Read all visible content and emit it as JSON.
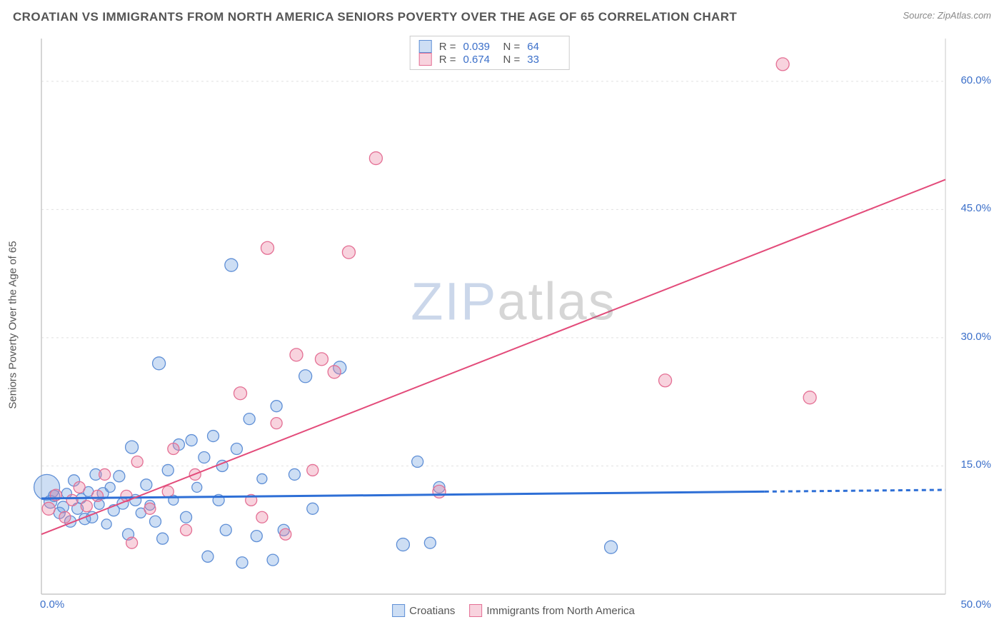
{
  "header": {
    "title": "CROATIAN VS IMMIGRANTS FROM NORTH AMERICA SENIORS POVERTY OVER THE AGE OF 65 CORRELATION CHART",
    "source": "Source: ZipAtlas.com"
  },
  "watermark": {
    "part1": "ZIP",
    "part2": "atlas"
  },
  "chart": {
    "type": "scatter",
    "y_axis_label": "Seniors Poverty Over the Age of 65",
    "background_color": "#ffffff",
    "grid_color": "#e0e0e0",
    "axis_line_color": "#c9c9c9",
    "tick_label_color": "#3b6fc9",
    "x_range": [
      0,
      50
    ],
    "y_range": [
      0,
      65
    ],
    "x_ticks": [
      {
        "v": 0,
        "label": "0.0%"
      },
      {
        "v": 50,
        "label": "50.0%"
      }
    ],
    "y_ticks": [
      {
        "v": 15,
        "label": "15.0%"
      },
      {
        "v": 30,
        "label": "30.0%"
      },
      {
        "v": 45,
        "label": "45.0%"
      },
      {
        "v": 60,
        "label": "60.0%"
      }
    ],
    "series": [
      {
        "id": "croatians",
        "label": "Croatians",
        "fill": "rgba(113,160,224,0.35)",
        "stroke": "#5f8fd6",
        "r_value": "0.039",
        "n_value": "64",
        "trend": {
          "color": "#2e6fd6",
          "width": 3,
          "y_start": 11.2,
          "y_end": 12.2,
          "dash_after_x": 40
        },
        "points": [
          {
            "x": 0.3,
            "y": 12.5,
            "r": 18
          },
          {
            "x": 0.5,
            "y": 10.8,
            "r": 9
          },
          {
            "x": 0.7,
            "y": 11.5,
            "r": 8
          },
          {
            "x": 1.0,
            "y": 9.5,
            "r": 8
          },
          {
            "x": 1.2,
            "y": 10.2,
            "r": 8
          },
          {
            "x": 1.4,
            "y": 11.8,
            "r": 7
          },
          {
            "x": 1.6,
            "y": 8.5,
            "r": 8
          },
          {
            "x": 1.8,
            "y": 13.3,
            "r": 8
          },
          {
            "x": 2.0,
            "y": 10.0,
            "r": 8
          },
          {
            "x": 2.2,
            "y": 11.2,
            "r": 7
          },
          {
            "x": 2.4,
            "y": 8.8,
            "r": 8
          },
          {
            "x": 2.6,
            "y": 12.0,
            "r": 7
          },
          {
            "x": 2.8,
            "y": 9.0,
            "r": 8
          },
          {
            "x": 3.0,
            "y": 14.0,
            "r": 8
          },
          {
            "x": 3.2,
            "y": 10.5,
            "r": 7
          },
          {
            "x": 3.4,
            "y": 11.8,
            "r": 8
          },
          {
            "x": 3.6,
            "y": 8.2,
            "r": 7
          },
          {
            "x": 3.8,
            "y": 12.5,
            "r": 7
          },
          {
            "x": 4.0,
            "y": 9.8,
            "r": 8
          },
          {
            "x": 4.3,
            "y": 13.8,
            "r": 8
          },
          {
            "x": 4.5,
            "y": 10.6,
            "r": 8
          },
          {
            "x": 4.8,
            "y": 7.0,
            "r": 8
          },
          {
            "x": 5.0,
            "y": 17.2,
            "r": 9
          },
          {
            "x": 5.2,
            "y": 11.0,
            "r": 8
          },
          {
            "x": 5.5,
            "y": 9.5,
            "r": 7
          },
          {
            "x": 5.8,
            "y": 12.8,
            "r": 8
          },
          {
            "x": 6.0,
            "y": 10.4,
            "r": 7
          },
          {
            "x": 6.3,
            "y": 8.5,
            "r": 8
          },
          {
            "x": 6.5,
            "y": 27.0,
            "r": 9
          },
          {
            "x": 6.7,
            "y": 6.5,
            "r": 8
          },
          {
            "x": 7.0,
            "y": 14.5,
            "r": 8
          },
          {
            "x": 7.3,
            "y": 11.0,
            "r": 7
          },
          {
            "x": 7.6,
            "y": 17.5,
            "r": 8
          },
          {
            "x": 8.0,
            "y": 9.0,
            "r": 8
          },
          {
            "x": 8.3,
            "y": 18.0,
            "r": 8
          },
          {
            "x": 8.6,
            "y": 12.5,
            "r": 7
          },
          {
            "x": 9.0,
            "y": 16.0,
            "r": 8
          },
          {
            "x": 9.2,
            "y": 4.4,
            "r": 8
          },
          {
            "x": 9.5,
            "y": 18.5,
            "r": 8
          },
          {
            "x": 9.8,
            "y": 11.0,
            "r": 8
          },
          {
            "x": 10.0,
            "y": 15.0,
            "r": 8
          },
          {
            "x": 10.2,
            "y": 7.5,
            "r": 8
          },
          {
            "x": 10.5,
            "y": 38.5,
            "r": 9
          },
          {
            "x": 10.8,
            "y": 17.0,
            "r": 8
          },
          {
            "x": 11.1,
            "y": 3.7,
            "r": 8
          },
          {
            "x": 11.5,
            "y": 20.5,
            "r": 8
          },
          {
            "x": 11.9,
            "y": 6.8,
            "r": 8
          },
          {
            "x": 12.2,
            "y": 13.5,
            "r": 7
          },
          {
            "x": 12.8,
            "y": 4.0,
            "r": 8
          },
          {
            "x": 13.0,
            "y": 22.0,
            "r": 8
          },
          {
            "x": 13.4,
            "y": 7.5,
            "r": 8
          },
          {
            "x": 14.0,
            "y": 14.0,
            "r": 8
          },
          {
            "x": 14.6,
            "y": 25.5,
            "r": 9
          },
          {
            "x": 15.0,
            "y": 10.0,
            "r": 8
          },
          {
            "x": 16.5,
            "y": 26.5,
            "r": 9
          },
          {
            "x": 20.0,
            "y": 5.8,
            "r": 9
          },
          {
            "x": 20.8,
            "y": 15.5,
            "r": 8
          },
          {
            "x": 21.5,
            "y": 6.0,
            "r": 8
          },
          {
            "x": 22.0,
            "y": 12.5,
            "r": 8
          },
          {
            "x": 31.5,
            "y": 5.5,
            "r": 9
          }
        ]
      },
      {
        "id": "immigrants",
        "label": "Immigrants from North America",
        "fill": "rgba(236,130,160,0.35)",
        "stroke": "#e46f94",
        "r_value": "0.674",
        "n_value": "33",
        "trend": {
          "color": "#e34b7a",
          "width": 2,
          "y_start": 7.0,
          "y_end": 48.5,
          "dash_after_x": 50
        },
        "points": [
          {
            "x": 0.4,
            "y": 10.0,
            "r": 9
          },
          {
            "x": 0.8,
            "y": 11.6,
            "r": 8
          },
          {
            "x": 1.3,
            "y": 9.0,
            "r": 8
          },
          {
            "x": 1.7,
            "y": 11.0,
            "r": 8
          },
          {
            "x": 2.1,
            "y": 12.5,
            "r": 8
          },
          {
            "x": 2.5,
            "y": 10.3,
            "r": 8
          },
          {
            "x": 3.1,
            "y": 11.5,
            "r": 8
          },
          {
            "x": 3.5,
            "y": 14.0,
            "r": 8
          },
          {
            "x": 4.7,
            "y": 11.5,
            "r": 8
          },
          {
            "x": 5.0,
            "y": 6.0,
            "r": 8
          },
          {
            "x": 5.3,
            "y": 15.5,
            "r": 8
          },
          {
            "x": 6.0,
            "y": 10.0,
            "r": 8
          },
          {
            "x": 7.0,
            "y": 12.0,
            "r": 8
          },
          {
            "x": 7.3,
            "y": 17.0,
            "r": 8
          },
          {
            "x": 8.0,
            "y": 7.5,
            "r": 8
          },
          {
            "x": 8.5,
            "y": 14.0,
            "r": 8
          },
          {
            "x": 11.0,
            "y": 23.5,
            "r": 9
          },
          {
            "x": 11.6,
            "y": 11.0,
            "r": 8
          },
          {
            "x": 12.2,
            "y": 9.0,
            "r": 8
          },
          {
            "x": 12.5,
            "y": 40.5,
            "r": 9
          },
          {
            "x": 13.0,
            "y": 20.0,
            "r": 8
          },
          {
            "x": 13.5,
            "y": 7.0,
            "r": 8
          },
          {
            "x": 14.1,
            "y": 28.0,
            "r": 9
          },
          {
            "x": 15.0,
            "y": 14.5,
            "r": 8
          },
          {
            "x": 15.5,
            "y": 27.5,
            "r": 9
          },
          {
            "x": 16.2,
            "y": 26.0,
            "r": 9
          },
          {
            "x": 17.0,
            "y": 40.0,
            "r": 9
          },
          {
            "x": 18.5,
            "y": 51.0,
            "r": 9
          },
          {
            "x": 22.0,
            "y": 12.0,
            "r": 9
          },
          {
            "x": 34.5,
            "y": 25.0,
            "r": 9
          },
          {
            "x": 41.0,
            "y": 62.0,
            "r": 9
          },
          {
            "x": 42.5,
            "y": 23.0,
            "r": 9
          }
        ]
      }
    ],
    "top_legend_stats": {
      "r_label": "R =",
      "n_label": "N ="
    }
  }
}
